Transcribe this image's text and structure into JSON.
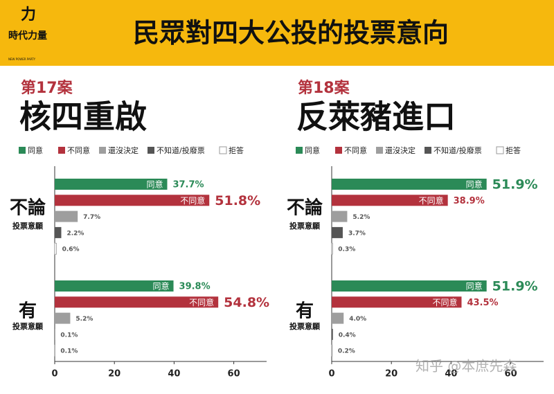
{
  "header": {
    "logo": "時代力量",
    "logo_subtitle": "NEW POWER PARTY",
    "title": "民眾對四大公投的投票意向"
  },
  "chart_data": [
    {
      "type": "bar",
      "orientation": "horizontal",
      "case_label": "第17案",
      "title": "核四重啟",
      "categories": [
        "不論",
        "有"
      ],
      "category_subtitles": [
        "投票意願",
        "投票意願"
      ],
      "series": [
        {
          "name": "同意",
          "color": "#2b8a57",
          "values": [
            37.7,
            39.8
          ],
          "value_labels": [
            "37.7%",
            "39.8%"
          ]
        },
        {
          "name": "不同意",
          "color": "#b3323d",
          "values": [
            51.8,
            54.8
          ],
          "value_labels": [
            "51.8%",
            "54.8%"
          ]
        },
        {
          "name": "還沒決定",
          "color": "#9e9e9e",
          "values": [
            7.7,
            5.2
          ],
          "value_labels": [
            "7.7%",
            "5.2%"
          ]
        },
        {
          "name": "不知道/投廢票",
          "color": "#555555",
          "values": [
            2.2,
            0.1
          ],
          "value_labels": [
            "2.2%",
            "0.1%"
          ]
        },
        {
          "name": "拒答",
          "color": "#ffffff",
          "values": [
            0.6,
            0.1
          ],
          "value_labels": [
            "0.6%",
            "0.1%"
          ]
        }
      ],
      "xlim": [
        0,
        71
      ],
      "xticks": [
        0,
        20,
        40,
        60
      ],
      "legend": "top"
    },
    {
      "type": "bar",
      "orientation": "horizontal",
      "case_label": "第18案",
      "title": "反萊豬進口",
      "categories": [
        "不論",
        "有"
      ],
      "category_subtitles": [
        "投票意願",
        "投票意願"
      ],
      "series": [
        {
          "name": "同意",
          "color": "#2b8a57",
          "values": [
            51.9,
            51.9
          ],
          "value_labels": [
            "51.9%",
            "51.9%"
          ]
        },
        {
          "name": "不同意",
          "color": "#b3323d",
          "values": [
            38.9,
            43.5
          ],
          "value_labels": [
            "38.9%",
            "43.5%"
          ]
        },
        {
          "name": "還沒決定",
          "color": "#9e9e9e",
          "values": [
            5.2,
            4.0
          ],
          "value_labels": [
            "5.2%",
            "4.0%"
          ]
        },
        {
          "name": "不知道/投廢票",
          "color": "#555555",
          "values": [
            3.7,
            0.4
          ],
          "value_labels": [
            "3.7%",
            "0.4%"
          ]
        },
        {
          "name": "拒答",
          "color": "#ffffff",
          "values": [
            0.3,
            0.2
          ],
          "value_labels": [
            "0.3%",
            "0.2%"
          ]
        }
      ],
      "xlim": [
        0,
        71
      ],
      "xticks": [
        0,
        20,
        40,
        60
      ],
      "legend": "top"
    }
  ],
  "watermark": "知乎 @本庶先森"
}
